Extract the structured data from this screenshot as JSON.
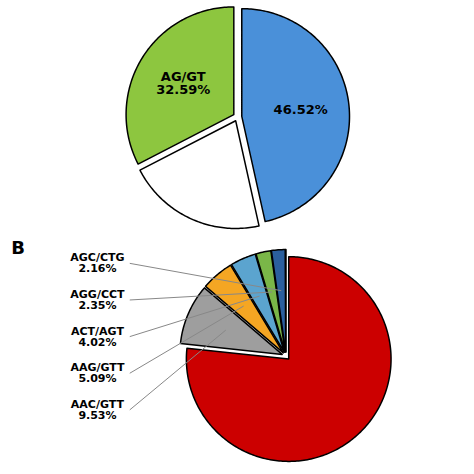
{
  "chart_data": [
    {
      "type": "pie",
      "categories": [
        null,
        null,
        "AG/GT"
      ],
      "values": [
        46.52,
        20.89,
        32.59
      ],
      "value_labels": [
        "46.52%",
        null,
        "32.59%"
      ],
      "colors": [
        "#4A90D9",
        "#FFFFFF",
        "#8DC63F"
      ],
      "data_labels": true
    },
    {
      "type": "pie",
      "title": "B",
      "categories": [
        null,
        "AAC/GTT",
        "AAG/GTT",
        "ACT/AGT",
        "AGG/CCT",
        "AGC/CTG",
        null
      ],
      "values": [
        76.35,
        9.53,
        5.09,
        4.02,
        2.35,
        2.16,
        0.06
      ],
      "value_labels": [
        null,
        "9.53%",
        "5.09%",
        "4.02%",
        "2.35%",
        "2.16%",
        null
      ],
      "colors": [
        "#CC0000",
        "#9E9E9E",
        "#F5A623",
        "#5BA4CF",
        "#7AB648",
        "#2B5F9E",
        "#111111"
      ],
      "data_labels": true
    }
  ]
}
